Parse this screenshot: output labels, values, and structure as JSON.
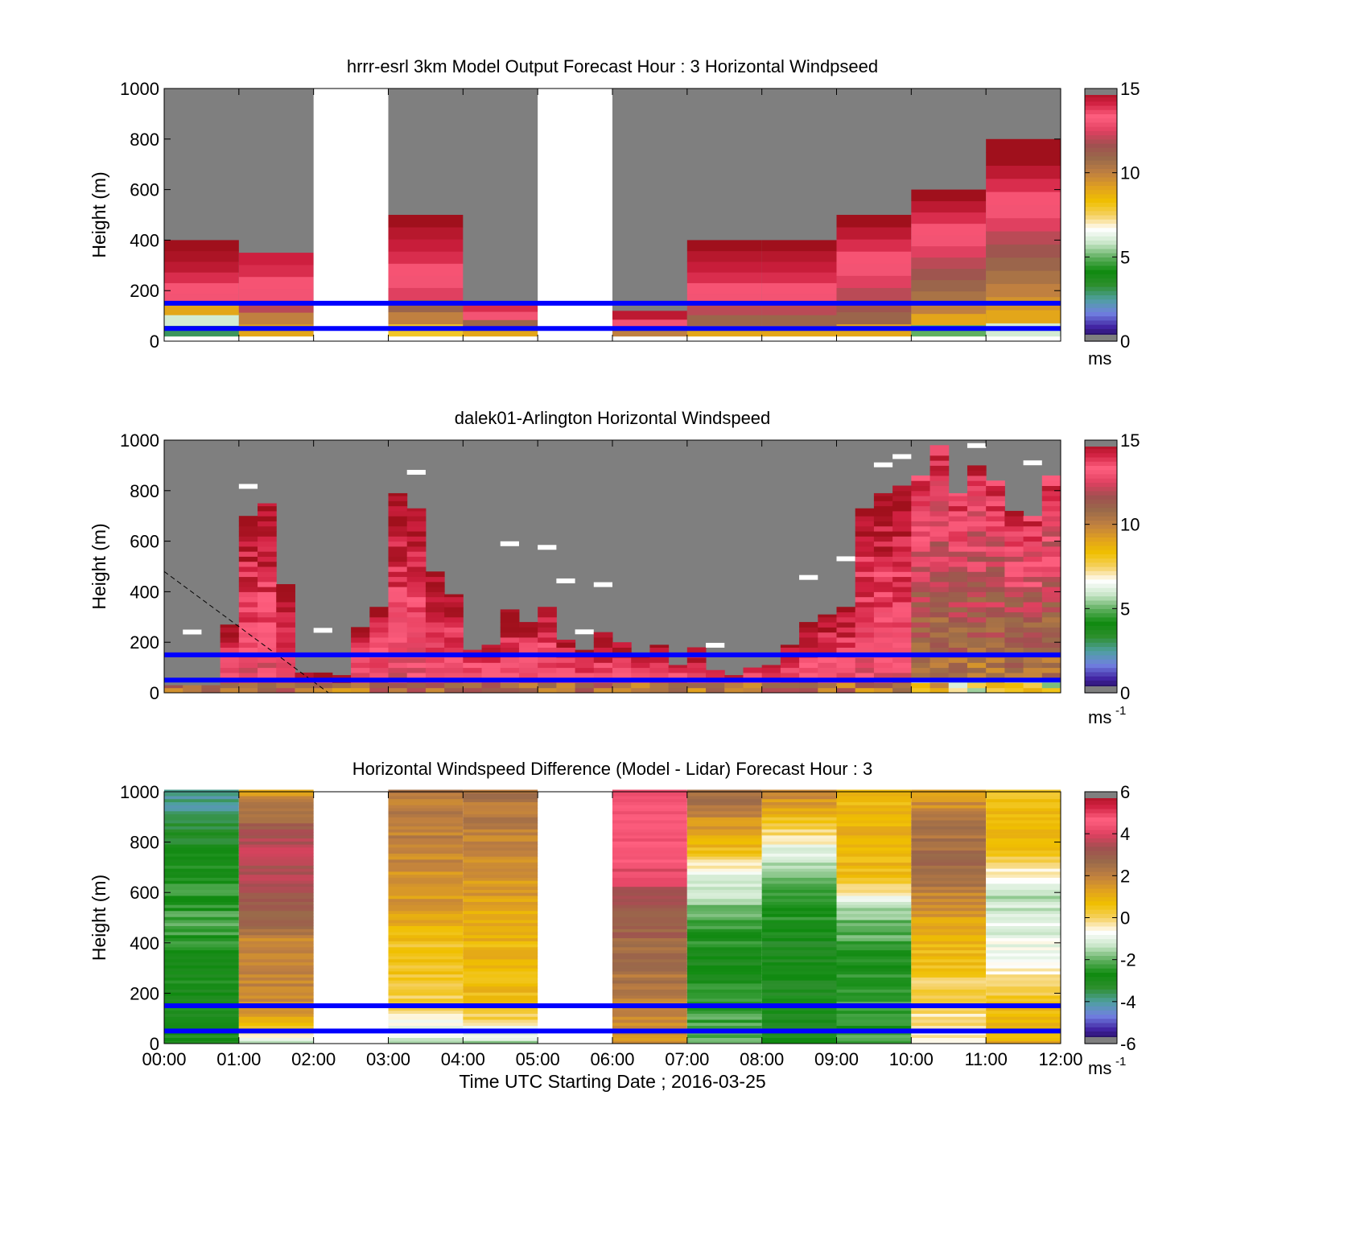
{
  "colors": {
    "no_data": "#7f7f7f",
    "reference_lines": "#0000ff",
    "frame": "#000000",
    "speed_colormap": [
      "#1a0a40",
      "#4020a0",
      "#7080e0",
      "#4fa0a0",
      "#2e8f2e",
      "#0f8a0f",
      "#60b060",
      "#c8e6c8",
      "#ffffff",
      "#f5d060",
      "#f0c000",
      "#e0a020",
      "#c08040",
      "#9a6a4a",
      "#a05050",
      "#e04060",
      "#ff6080",
      "#d02040",
      "#a0101c"
    ],
    "difference_colormap": [
      "#1a0a40",
      "#4020a0",
      "#7080e0",
      "#4fa0a0",
      "#2e8f2e",
      "#0f8a0f",
      "#60b060",
      "#c8e6c8",
      "#ffffff",
      "#f5d060",
      "#f0c000",
      "#e0a020",
      "#c08040",
      "#9a6a4a",
      "#a05050",
      "#e04060",
      "#ff6080",
      "#d02040",
      "#a0101c"
    ]
  },
  "chart_data": [
    {
      "type": "heatmap",
      "title": "hrrr-esrl 3km Model Output   Forecast Hour : 3 Horizontal Windpseed",
      "ylabel": "Height (m)",
      "ylim": [
        0,
        1000
      ],
      "y_ticks": [
        "0",
        "200",
        "400",
        "600",
        "800",
        "1000"
      ],
      "xlim_hours": [
        0,
        12
      ],
      "colorbar": {
        "range": [
          0,
          15
        ],
        "ticks": [
          "0",
          "5",
          "10",
          "15"
        ],
        "unit": "ms"
      },
      "reference_lines_m": [
        50,
        150
      ],
      "columns": [
        {
          "start": 0,
          "end": 1,
          "top_m": 400,
          "speed_bottom_to_top": [
            3,
            6,
            9,
            13,
            13.5,
            14,
            14.5,
            14.8,
            15
          ]
        },
        {
          "start": 1,
          "end": 2,
          "top_m": 350,
          "speed_bottom_to_top": [
            9,
            10,
            12,
            13,
            13.5,
            14,
            14.2
          ]
        },
        {
          "start": 2,
          "end": 3,
          "missing": true
        },
        {
          "start": 3,
          "end": 4,
          "top_m": 500,
          "speed_bottom_to_top": [
            8,
            10,
            11,
            12.5,
            13,
            13.5,
            14,
            14.3,
            14.6,
            15
          ]
        },
        {
          "start": 4,
          "end": 5,
          "top_m": 150,
          "speed_bottom_to_top": [
            9,
            11,
            13,
            14
          ]
        },
        {
          "start": 5,
          "end": 6,
          "missing": true
        },
        {
          "start": 6,
          "end": 7,
          "top_m": 120,
          "speed_bottom_to_top": [
            10,
            13,
            14.5
          ]
        },
        {
          "start": 7,
          "end": 8,
          "top_m": 400,
          "speed_bottom_to_top": [
            9,
            11,
            12,
            13,
            13.5,
            14,
            14.3,
            14.6,
            15
          ]
        },
        {
          "start": 8,
          "end": 9,
          "top_m": 400,
          "speed_bottom_to_top": [
            9,
            11,
            12,
            13,
            13.5,
            14,
            14.3,
            14.6,
            15
          ]
        },
        {
          "start": 9,
          "end": 10,
          "top_m": 500,
          "speed_bottom_to_top": [
            9,
            11,
            11.5,
            12,
            12.5,
            13,
            13.5,
            14,
            14.5,
            15
          ]
        },
        {
          "start": 10,
          "end": 11,
          "top_m": 600,
          "speed_bottom_to_top": [
            5,
            9,
            10,
            10.5,
            11,
            11.5,
            12,
            12.5,
            13,
            13.5,
            14,
            14.5,
            15
          ]
        },
        {
          "start": 11,
          "end": 12,
          "top_m": 800,
          "speed_bottom_to_top": [
            6,
            9,
            9.5,
            10,
            10.5,
            11,
            11.5,
            12,
            12.5,
            13,
            13.5,
            14,
            14.5,
            15,
            15
          ]
        }
      ]
    },
    {
      "type": "heatmap",
      "title": "dalek01-Arlington  Horizontal Windspeed",
      "ylabel": "Height (m)",
      "ylim": [
        0,
        1000
      ],
      "y_ticks": [
        "0",
        "200",
        "400",
        "600",
        "800",
        "1000"
      ],
      "xlim_hours": [
        0,
        12
      ],
      "colorbar": {
        "range": [
          0,
          15
        ],
        "ticks": [
          "0",
          "5",
          "10",
          "15"
        ],
        "unit": "ms",
        "unit_superscript": "-1"
      },
      "reference_lines_m": [
        50,
        150
      ],
      "column_width_hours": 0.25,
      "column_tops_m": [
        30,
        30,
        30,
        270,
        700,
        750,
        430,
        80,
        80,
        70,
        260,
        340,
        790,
        730,
        480,
        390,
        170,
        190,
        330,
        280,
        340,
        210,
        170,
        240,
        200,
        150,
        190,
        110,
        180,
        90,
        70,
        100,
        110,
        190,
        280,
        310,
        340,
        730,
        790,
        820,
        860,
        980,
        790,
        900,
        840,
        720,
        700,
        860
      ],
      "high_speed_columns_hours": [
        10,
        12
      ],
      "dashed_line": {
        "from": {
          "hour": 0.0,
          "height_m": 480
        },
        "to": {
          "hour": 2.2,
          "height_m": 0
        }
      }
    },
    {
      "type": "heatmap",
      "title": "Horizontal Windspeed Difference (Model - Lidar) Forecast Hour : 3",
      "ylabel": "Height (m)",
      "xlabel": "Time UTC  Starting Date ; 2016-03-25",
      "ylim": [
        0,
        1000
      ],
      "y_ticks": [
        "0",
        "200",
        "400",
        "600",
        "800",
        "1000"
      ],
      "x_ticks": [
        "00:00",
        "01:00",
        "02:00",
        "03:00",
        "04:00",
        "05:00",
        "06:00",
        "07:00",
        "08:00",
        "09:00",
        "10:00",
        "11:00",
        "12:00"
      ],
      "xlim_hours": [
        0,
        12
      ],
      "colorbar": {
        "range": [
          -6,
          6
        ],
        "ticks": [
          "-6",
          "-4",
          "-2",
          "0",
          "2",
          "4",
          "6"
        ],
        "unit": "ms",
        "unit_superscript": "-1"
      },
      "reference_lines_m": [
        50,
        150
      ],
      "columns": [
        {
          "start": 0,
          "end": 1,
          "profile": [
            [
              0,
              -2.8
            ],
            [
              300,
              -2.8
            ],
            [
              450,
              -2.2
            ],
            [
              700,
              -2.6
            ],
            [
              850,
              -3.4
            ],
            [
              1000,
              -4
            ]
          ]
        },
        {
          "start": 1,
          "end": 2,
          "profile": [
            [
              0,
              -1.6
            ],
            [
              120,
              1.8
            ],
            [
              400,
              1.8
            ],
            [
              550,
              3.2
            ],
            [
              800,
              3.6
            ],
            [
              1000,
              1.5
            ]
          ]
        },
        {
          "start": 2,
          "end": 3,
          "missing": true
        },
        {
          "start": 3,
          "end": 4,
          "profile": [
            [
              0,
              -1.2
            ],
            [
              200,
              0.3
            ],
            [
              400,
              0.5
            ],
            [
              550,
              1.4
            ],
            [
              800,
              2.0
            ],
            [
              1000,
              2.2
            ]
          ]
        },
        {
          "start": 4,
          "end": 5,
          "profile": [
            [
              0,
              -1.5
            ],
            [
              150,
              0.7
            ],
            [
              450,
              0.9
            ],
            [
              650,
              1.6
            ],
            [
              1000,
              2.4
            ]
          ]
        },
        {
          "start": 5,
          "end": 6,
          "missing": true
        },
        {
          "start": 6,
          "end": 7,
          "profile": [
            [
              0,
              1.5
            ],
            [
              300,
              2.4
            ],
            [
              500,
              3.0
            ],
            [
              650,
              4.0
            ],
            [
              800,
              4.6
            ],
            [
              1000,
              4.2
            ]
          ]
        },
        {
          "start": 7,
          "end": 8,
          "profile": [
            [
              0,
              -2.0
            ],
            [
              300,
              -2.9
            ],
            [
              500,
              -2.2
            ],
            [
              650,
              -1.0
            ],
            [
              800,
              1.0
            ],
            [
              1000,
              2.6
            ]
          ]
        },
        {
          "start": 8,
          "end": 9,
          "profile": [
            [
              0,
              -2.8
            ],
            [
              400,
              -3.0
            ],
            [
              600,
              -2.2
            ],
            [
              750,
              -1.2
            ],
            [
              1000,
              2.0
            ]
          ]
        },
        {
          "start": 9,
          "end": 10,
          "profile": [
            [
              0,
              -2.2
            ],
            [
              300,
              -2.6
            ],
            [
              550,
              -1.6
            ],
            [
              650,
              0.6
            ],
            [
              800,
              1.0
            ],
            [
              1000,
              0.8
            ]
          ]
        },
        {
          "start": 10,
          "end": 11,
          "profile": [
            [
              0,
              -0.4
            ],
            [
              250,
              0.2
            ],
            [
              500,
              1.4
            ],
            [
              700,
              2.6
            ],
            [
              850,
              2.4
            ],
            [
              1000,
              1.3
            ]
          ]
        },
        {
          "start": 11,
          "end": 12,
          "profile": [
            [
              0,
              1.0
            ],
            [
              150,
              0.8
            ],
            [
              300,
              -0.6
            ],
            [
              600,
              -1.4
            ],
            [
              800,
              1.0
            ],
            [
              950,
              0.5
            ]
          ]
        }
      ]
    }
  ]
}
